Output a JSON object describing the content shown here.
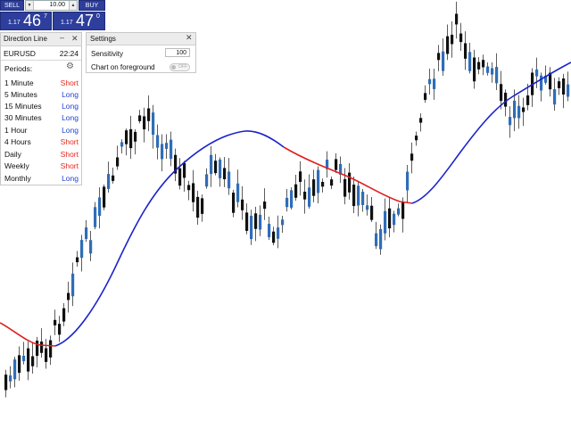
{
  "trade_panel": {
    "sell_label": "SELL",
    "buy_label": "BUY",
    "lot_value": "10.00",
    "lot_down": "▼",
    "lot_up": "▲",
    "bid": {
      "small": "1.17",
      "big": "46",
      "sup": "7"
    },
    "ask": {
      "small": "1.17",
      "big": "47",
      "sup": "0"
    }
  },
  "direction_panel": {
    "title": "Direction Line",
    "minimize": "–",
    "close": "✕",
    "symbol": "EURUSD",
    "time": "22:24",
    "periods_label": "Periods:",
    "settings_icon": "gear-icon",
    "rows": [
      {
        "timeframe": "1 Minute",
        "signal": "Short"
      },
      {
        "timeframe": "5 Minutes",
        "signal": "Long"
      },
      {
        "timeframe": "15 Minutes",
        "signal": "Long"
      },
      {
        "timeframe": "30 Minutes",
        "signal": "Long"
      },
      {
        "timeframe": "1 Hour",
        "signal": "Long"
      },
      {
        "timeframe": "4 Hours",
        "signal": "Short"
      },
      {
        "timeframe": "Daily",
        "signal": "Short"
      },
      {
        "timeframe": "Weekly",
        "signal": "Short"
      },
      {
        "timeframe": "Monthly",
        "signal": "Long"
      }
    ]
  },
  "settings_panel": {
    "title": "Settings",
    "close": "✕",
    "sensitivity_label": "Sensitivity",
    "sensitivity_value": "100",
    "foreground_label": "Chart on foreground",
    "foreground_toggle": "OFF"
  },
  "chart_colors": {
    "bull": "#2f6db8",
    "bear": "#111111",
    "line_up": "#1a22cc",
    "line_down": "#e01f1f"
  }
}
